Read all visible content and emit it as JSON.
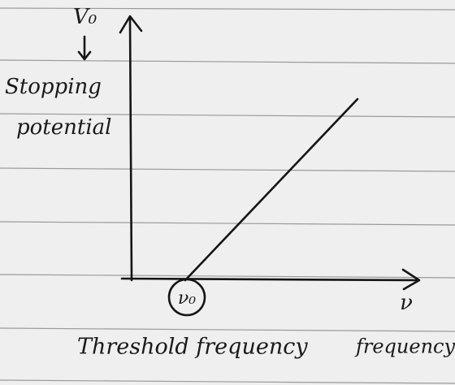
{
  "axes": {
    "y_symbol": "V₀",
    "y_label_line1": "Stopping",
    "y_label_line2": "potential",
    "x_symbol": "ν",
    "x_label": "frequency"
  },
  "threshold": {
    "symbol": "ν₀",
    "label": "Threshold frequency"
  }
}
